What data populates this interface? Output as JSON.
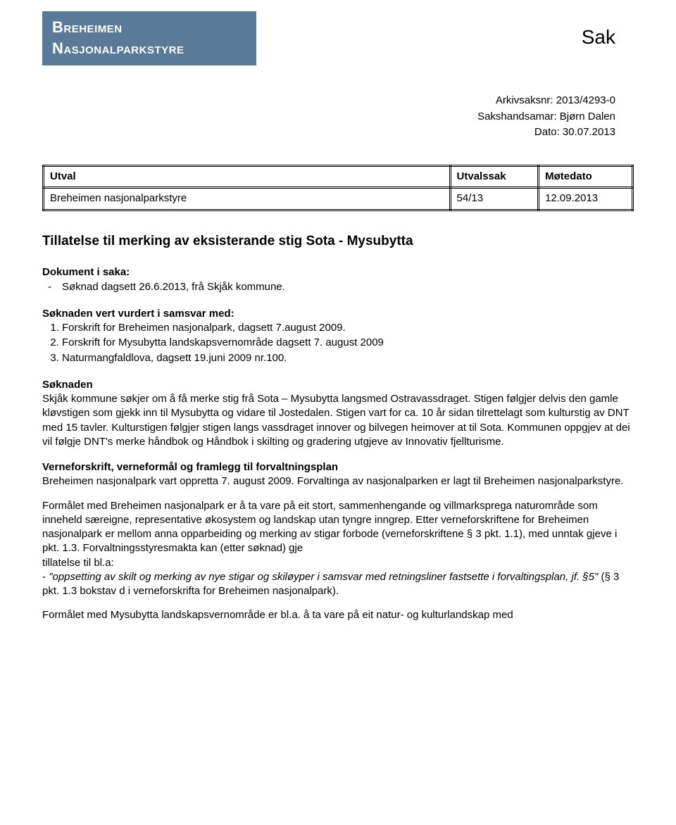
{
  "header": {
    "org_line1": "Breheimen",
    "org_line2": "Nasjonalparkstyre",
    "sak_label": "Sak"
  },
  "meta": {
    "arkiv": "Arkivsaksnr: 2013/4293-0",
    "handler": "Sakshandsamar: Bjørn Dalen",
    "date": "Dato: 30.07.2013"
  },
  "table": {
    "headers": {
      "utval": "Utval",
      "sak": "Utvalssak",
      "dato": "Møtedato"
    },
    "row": {
      "utval": "Breheimen nasjonalparkstyre",
      "sak": "54/13",
      "dato": "12.09.2013"
    }
  },
  "title": "Tillatelse til merking av eksisterande stig Sota - Mysubytta",
  "dokument": {
    "label": "Dokument i saka:",
    "items": [
      "Søknad dagsett 26.6.2013, frå Skjåk kommune."
    ]
  },
  "samsvar": {
    "label": "Søknaden vert vurdert i samsvar med:",
    "items": [
      "Forskrift for Breheimen nasjonalpark, dagsett 7.august 2009.",
      "Forskrift for Mysubytta landskapsvernområde dagsett 7. august 2009",
      "Naturmangfaldlova, dagsett 19.juni 2009 nr.100."
    ]
  },
  "soknaden": {
    "label": "Søknaden",
    "text": "Skjåk kommune søkjer om å få merke stig frå Sota – Mysubytta langsmed Ostravassdraget. Stigen følgjer delvis den gamle kløvstigen som gjekk inn til Mysubytta og vidare til Jostedalen. Stigen vart for ca. 10 år sidan tilrettelagt som kulturstig av DNT med 15 tavler. Kulturstigen følgjer stigen langs vassdraget innover og bilvegen heimover at til Sota. Kommunen oppgjev at dei vil følgje DNT's merke håndbok og Håndbok i skilting og gradering utgjeve av Innovativ fjellturisme."
  },
  "verne": {
    "label": "Verneforskrift, verneformål og framlegg til forvaltningsplan",
    "p1": "Breheimen nasjonalpark vart oppretta 7. august 2009. Forvaltinga av nasjonalparken er lagt til Breheimen nasjonalparkstyre.",
    "p2": "Formålet med Breheimen nasjonalpark er å ta vare på eit stort, sammenhengande og villmarksprega naturområde som inneheld særeigne, representative økosystem og landskap utan tyngre inngrep. Etter verneforskriftene for Breheimen nasjonalpark er mellom anna opparbeiding og merking av stigar forbode (verneforskriftene § 3 pkt. 1.1), med unntak gjeve i pkt. 1.3. Forvaltningsstyresmakta kan (etter søknad) gje",
    "p2b": "tillatelse til bl.a:",
    "quote_lead": "- ",
    "quote_italic": "\"oppsetting av skilt og merking av nye stigar og skiløyper i samsvar med retningsliner fastsette i forvaltingsplan, jf. §5\"",
    "quote_tail": " (§ 3 pkt. 1.3 bokstav d i verneforskrifta for Breheimen nasjonalpark).",
    "p3": "Formålet med Mysubytta landskapsvernområde er bl.a. å ta vare på eit natur- og kulturlandskap med"
  }
}
